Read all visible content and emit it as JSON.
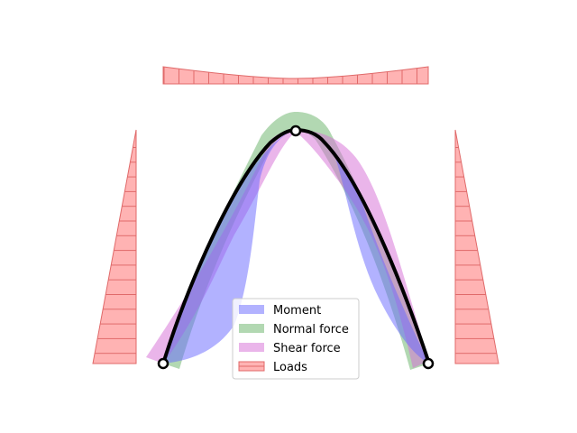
{
  "diagram": {
    "type": "arch-structure-force-diagram",
    "grid": false,
    "legend_placement": "lower-center",
    "legend": [
      {
        "key": "moment",
        "label": "Moment",
        "color": "#6666ff",
        "alpha": 0.5
      },
      {
        "key": "normal",
        "label": "Normal force",
        "color": "#66b266",
        "alpha": 0.5
      },
      {
        "key": "shear",
        "label": "Shear force",
        "color": "#d56bd5",
        "alpha": 0.5
      },
      {
        "key": "loads",
        "label": "Loads",
        "color": "#ff8080",
        "alpha": 0.6,
        "hatch": "vertical-lines"
      }
    ],
    "structure": {
      "color": "#000000",
      "nodes": [
        "left-support",
        "crown-hinge",
        "right-support"
      ]
    },
    "loads": {
      "top": "distributed load along top, larger at ends",
      "left": "triangular load on left side, increasing downward",
      "right": "triangular load on right side, increasing downward"
    }
  }
}
